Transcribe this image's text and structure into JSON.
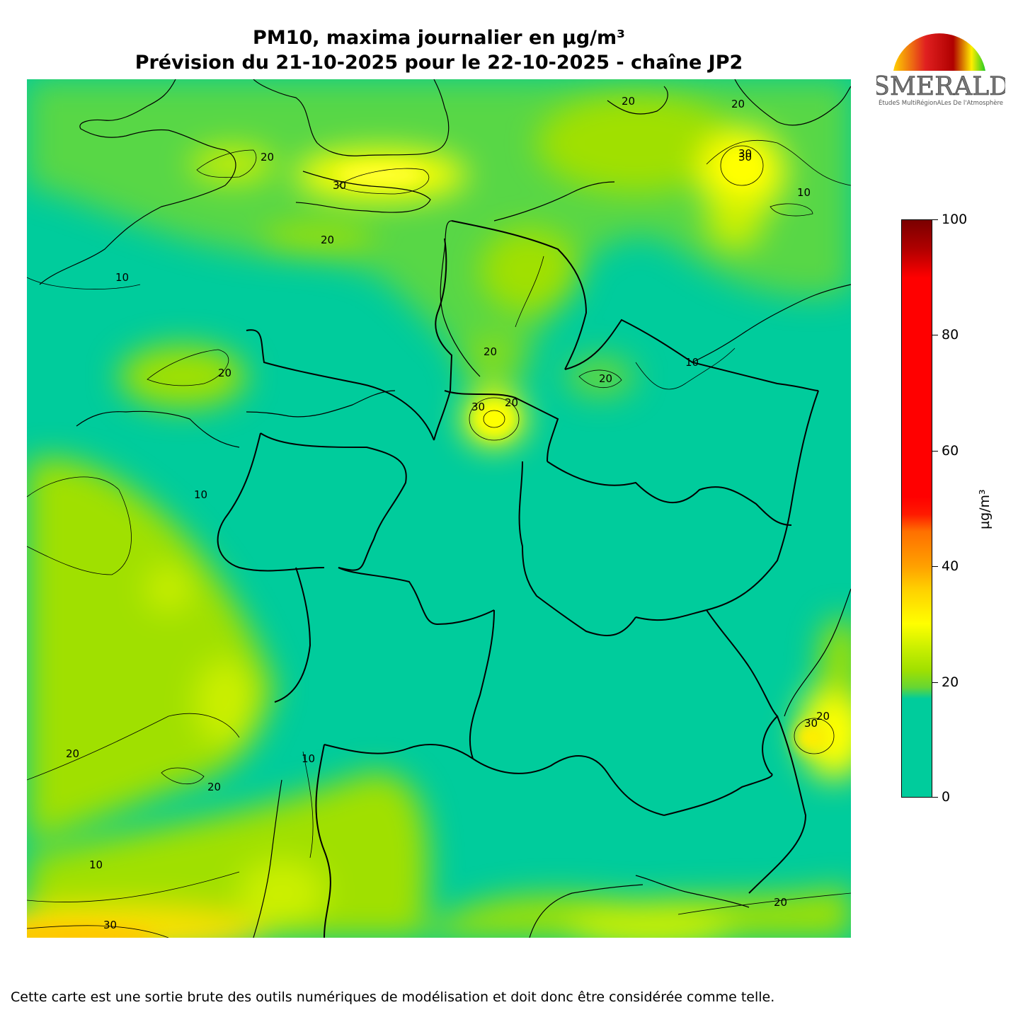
{
  "title_line1": "PM10, maxima journalier en µg/m³",
  "title_line2": "Prévision du 21-10-2025 pour le 22-10-2025 - chaîne JP2",
  "logo": {
    "name": "ESMERALDA",
    "subtitle": "ÉtudeS MultiRégionALes De l'Atmosphère"
  },
  "colorbar": {
    "label": "µg/m³",
    "min": 0,
    "max": 100,
    "ticks": [
      "0",
      "20",
      "40",
      "60",
      "80",
      "100"
    ],
    "colors": [
      "#00cc9c",
      "#a0e000",
      "#ffff00",
      "#ffa000",
      "#ff0000",
      "#7a0000"
    ]
  },
  "contour_labels": [
    "20",
    "30",
    "30",
    "20",
    "10",
    "20",
    "20",
    "20",
    "30",
    "20",
    "20",
    "10",
    "10",
    "30",
    "10",
    "20",
    "30",
    "20",
    "10",
    "20",
    "20",
    "10",
    "30",
    "20"
  ],
  "disclaimer": "Cette carte est une sortie brute des outils numériques de modélisation et doit donc être considérée comme telle."
}
